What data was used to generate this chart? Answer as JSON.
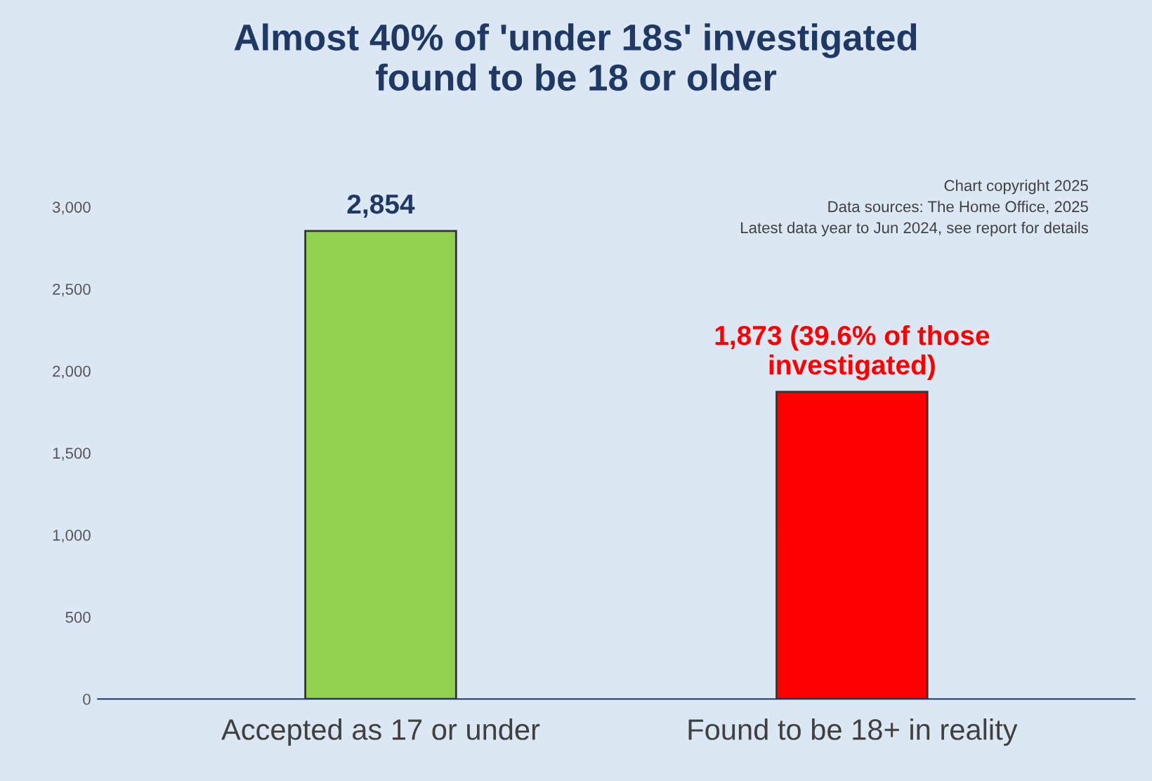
{
  "chart_data": {
    "type": "bar",
    "title": "Almost 40% of 'under 18s' investigated\nfound to be 18 or older",
    "categories": [
      "Accepted as 17 or under",
      "Found to be 18+ in reality"
    ],
    "values": [
      2854,
      1873
    ],
    "colors": [
      "#92d050",
      "#ff0000"
    ],
    "value_labels": [
      "2,854",
      "1,873 (39.6% of those\ninvestigated)"
    ],
    "ylim": [
      0,
      3000
    ],
    "yticks": [
      0,
      {
        "value": 500,
        "label": "500"
      },
      {
        "value": 1000,
        "label": "1,000"
      },
      {
        "value": 1500,
        "label": "1,500"
      },
      {
        "value": 2000,
        "label": "2,000"
      },
      {
        "value": 2500,
        "label": "2,500"
      },
      {
        "value": 3000,
        "label": "3,000"
      }
    ],
    "grid": false,
    "annotations": [
      "Chart copyright 2025",
      "Data sources: The Home Office, 2025",
      "Latest data year to Jun 2024, see report for details"
    ]
  }
}
